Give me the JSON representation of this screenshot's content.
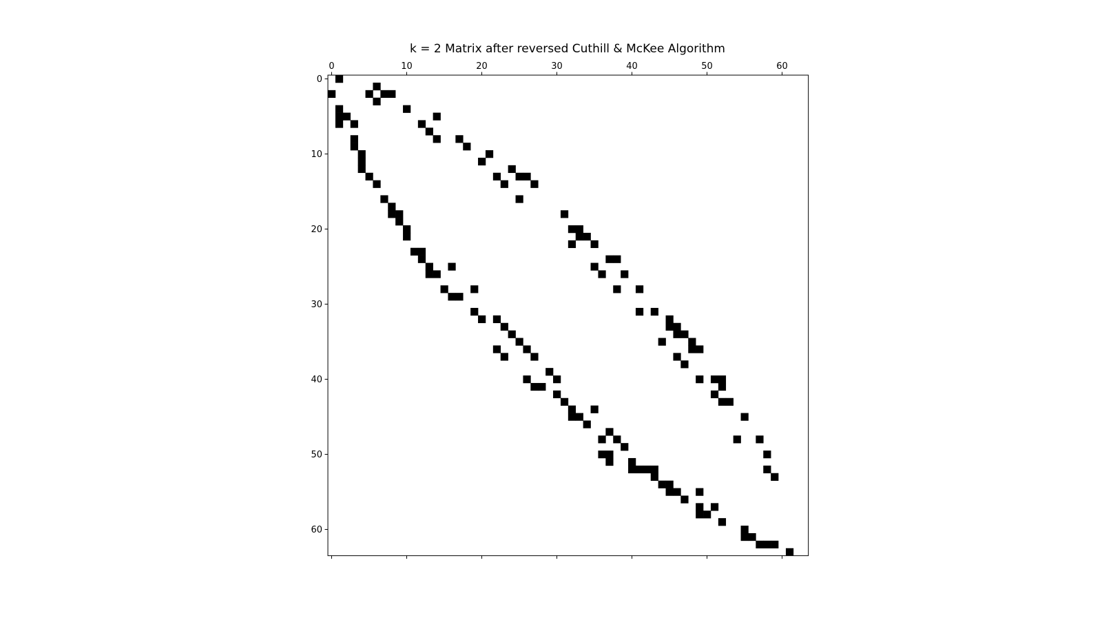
{
  "chart_data": {
    "type": "heatmap",
    "title": "k = 2 Matrix after reversed Cuthill & McKee Algorithm",
    "xlabel": "",
    "ylabel": "",
    "xlim": [
      0,
      63
    ],
    "ylim": [
      0,
      63
    ],
    "x_ticks": [
      0,
      10,
      20,
      30,
      40,
      50,
      60
    ],
    "y_ticks": [
      0,
      10,
      20,
      30,
      40,
      50,
      60
    ],
    "x_axis_position": "top",
    "grid": false,
    "colors": {
      "nonzero": "#000000",
      "zero": "#ffffff"
    },
    "nonzero_rows": [
      [
        1
      ],
      [
        6
      ],
      [
        0,
        5,
        7,
        8
      ],
      [
        6
      ],
      [
        1,
        10
      ],
      [
        1,
        2,
        14
      ],
      [
        1,
        3,
        12
      ],
      [
        13
      ],
      [
        3,
        14,
        17
      ],
      [
        3,
        18
      ],
      [
        4,
        21
      ],
      [
        4,
        20
      ],
      [
        4,
        24
      ],
      [
        5,
        22,
        25,
        26
      ],
      [
        6,
        23,
        27
      ],
      [],
      [
        7,
        25
      ],
      [
        8
      ],
      [
        8,
        9,
        31
      ],
      [
        9
      ],
      [
        10,
        32,
        33
      ],
      [
        10,
        33,
        34
      ],
      [
        32,
        35
      ],
      [
        11,
        12
      ],
      [
        12,
        37,
        38
      ],
      [
        13,
        16,
        35
      ],
      [
        13,
        14,
        36,
        39
      ],
      [],
      [
        15,
        19,
        38,
        41
      ],
      [
        16,
        17
      ],
      [],
      [
        19,
        41,
        43
      ],
      [
        20,
        22,
        45
      ],
      [
        23,
        45,
        46
      ],
      [
        24,
        46,
        47
      ],
      [
        25,
        44,
        48
      ],
      [
        22,
        26,
        48,
        49
      ],
      [
        23,
        27,
        46
      ],
      [
        47
      ],
      [
        29
      ],
      [
        26,
        30,
        49,
        51,
        52
      ],
      [
        27,
        28,
        52
      ],
      [
        30,
        51
      ],
      [
        31,
        52,
        53
      ],
      [
        32,
        35
      ],
      [
        32,
        33,
        55
      ],
      [
        34
      ],
      [
        37
      ],
      [
        36,
        38,
        54,
        57
      ],
      [
        39
      ],
      [
        36,
        37,
        58
      ],
      [
        37,
        40
      ],
      [
        40,
        41,
        42,
        43,
        58
      ],
      [
        43,
        59
      ],
      [
        44,
        45
      ],
      [
        45,
        46,
        49
      ],
      [
        47
      ],
      [
        49,
        51
      ],
      [
        49,
        50
      ],
      [
        52
      ],
      [
        55
      ],
      [
        55,
        56
      ],
      [
        57,
        58,
        59
      ],
      [
        61
      ]
    ]
  }
}
